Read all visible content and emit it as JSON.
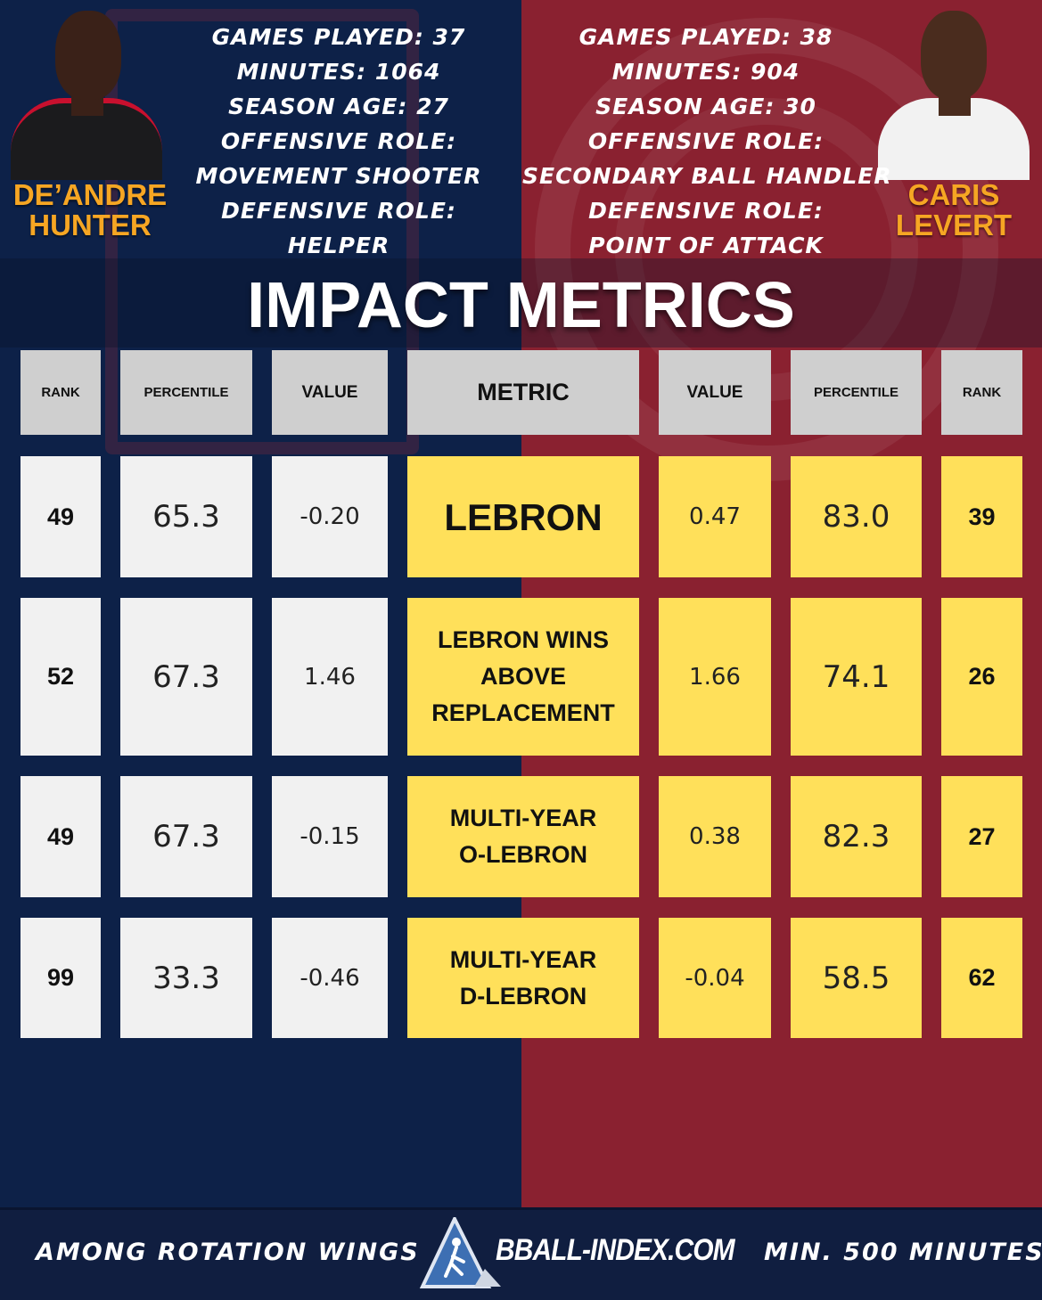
{
  "colors": {
    "left_bg": "#0d2148",
    "right_bg": "#8a2130",
    "accent": "#f6a623",
    "highlight": "#ffe05a"
  },
  "player_left": {
    "name_line1": "DE’ANDRE",
    "name_line2": "HUNTER",
    "stats": [
      "GAMES PLAYED: 37",
      "MINUTES: 1064",
      "SEASON AGE: 27",
      "OFFENSIVE ROLE:",
      "MOVEMENT SHOOTER",
      "DEFENSIVE ROLE:",
      "HELPER"
    ]
  },
  "player_right": {
    "name_line1": "CARIS",
    "name_line2": "LEVERT",
    "stats": [
      "GAMES PLAYED: 38",
      "MINUTES: 904",
      "SEASON AGE: 30",
      "OFFENSIVE ROLE:",
      "SECONDARY BALL HANDLER",
      "DEFENSIVE ROLE:",
      "POINT OF ATTACK"
    ]
  },
  "title": "IMPACT METRICS",
  "headers": [
    "RANK",
    "PERCENTILE",
    "VALUE",
    "METRIC",
    "VALUE",
    "PERCENTILE",
    "RANK"
  ],
  "rows": [
    {
      "left_rank": "49",
      "left_pct": "65.3",
      "left_val": "-0.20",
      "metric": "LEBRON",
      "right_val": "0.47",
      "right_pct": "83.0",
      "right_rank": "39"
    },
    {
      "left_rank": "52",
      "left_pct": "67.3",
      "left_val": "1.46",
      "metric_lines": [
        "LEBRON WINS",
        "ABOVE",
        "REPLACEMENT"
      ],
      "right_val": "1.66",
      "right_pct": "74.1",
      "right_rank": "26"
    },
    {
      "left_rank": "49",
      "left_pct": "67.3",
      "left_val": "-0.15",
      "metric_lines": [
        "MULTI-YEAR",
        "O-LEBRON"
      ],
      "right_val": "0.38",
      "right_pct": "82.3",
      "right_rank": "27"
    },
    {
      "left_rank": "99",
      "left_pct": "33.3",
      "left_val": "-0.46",
      "metric_lines": [
        "MULTI-YEAR",
        "D-LEBRON"
      ],
      "right_val": "-0.04",
      "right_pct": "58.5",
      "right_rank": "62"
    }
  ],
  "footer": {
    "left": "AMONG ROTATION WINGS",
    "logo": "BBALL-INDEX.COM",
    "right": "MIN. 500 MINUTES"
  },
  "icons": {
    "logo_icon": "basketball-player-triangle-icon"
  }
}
